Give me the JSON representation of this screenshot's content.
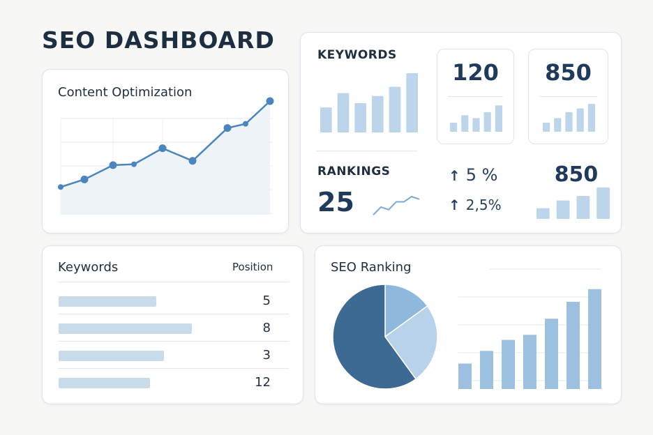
{
  "header": {
    "title": "SEO DASHBOARD"
  },
  "content_optimization": {
    "title": "Content Optimization",
    "chart_data": {
      "type": "line",
      "x": [
        0,
        1,
        2,
        3,
        4,
        5,
        6,
        7
      ],
      "y": [
        18,
        27,
        44,
        45,
        64,
        49,
        88,
        93
      ],
      "extra_end": 120,
      "ylim": [
        0,
        120
      ]
    }
  },
  "keywords_summary": {
    "label": "KEYWORDS",
    "chart_data": {
      "type": "bar",
      "values": [
        35,
        55,
        41,
        51,
        64,
        83
      ]
    },
    "stat_a": {
      "value": "120",
      "chart_data": {
        "type": "bar",
        "values": [
          12,
          22,
          18,
          26,
          35
        ]
      }
    },
    "stat_b": {
      "value": "850",
      "chart_data": {
        "type": "bar",
        "values": [
          12,
          18,
          26,
          31,
          37
        ]
      }
    }
  },
  "rankings": {
    "label": "RANKINGS",
    "value": "25",
    "sparkline": {
      "type": "line",
      "y": [
        2,
        8,
        6,
        12,
        12,
        16,
        14
      ]
    },
    "trend_1": {
      "arrow": "↑",
      "value": "5 %"
    },
    "trend_2": {
      "arrow": "↑",
      "value": "2,5%"
    },
    "stat": {
      "value": "850",
      "chart_data": {
        "type": "bar",
        "values": [
          14,
          24,
          30,
          41
        ]
      }
    }
  },
  "keywords_table": {
    "header_label": "Keywords",
    "header_position": "Position",
    "rows": [
      {
        "fill": 0.66,
        "position": "5"
      },
      {
        "fill": 0.9,
        "position": "8"
      },
      {
        "fill": 0.71,
        "position": "3"
      },
      {
        "fill": 0.62,
        "position": "12"
      }
    ]
  },
  "seo_ranking": {
    "title": "SEO Ranking",
    "pie": {
      "type": "pie",
      "values": [
        60,
        15,
        25
      ],
      "colors": [
        "#3d6a93",
        "#8fb8dd",
        "#b8d2ea"
      ]
    },
    "bars": {
      "type": "bar",
      "values": [
        30,
        45,
        58,
        64,
        83,
        103,
        118
      ],
      "ylim": [
        0,
        140
      ]
    }
  },
  "colors": {
    "accent": "#4a86bd",
    "bar": "#bcd5ea",
    "bar2": "#9dc0e0"
  }
}
